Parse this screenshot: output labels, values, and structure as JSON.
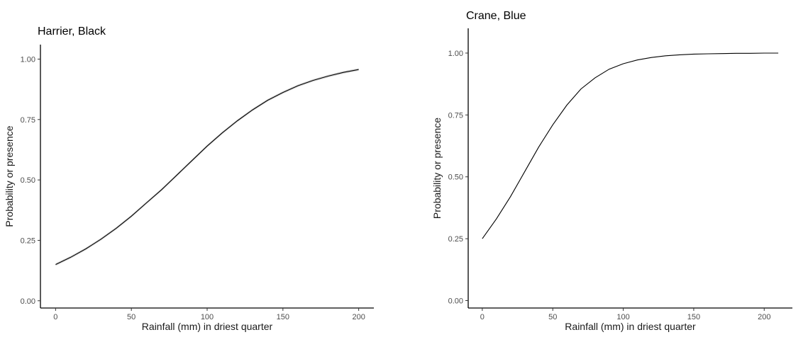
{
  "chart_data": [
    {
      "type": "line",
      "title": "Harrier, Black",
      "xlabel": "Rainfall (mm) in driest quarter",
      "ylabel": "Probability or presence",
      "xlim": [
        -10,
        210
      ],
      "ylim": [
        -0.03,
        1.06
      ],
      "xticks": [
        0,
        50,
        100,
        150,
        200
      ],
      "xtick_labels": [
        "0",
        "50",
        "100",
        "150",
        "200"
      ],
      "yticks": [
        0,
        0.25,
        0.5,
        0.75,
        1
      ],
      "ytick_labels": [
        "0.00",
        "0.25",
        "0.50",
        "0.75",
        "1.00"
      ],
      "grid": false,
      "has_ribbon": true,
      "series": [
        {
          "x": [
            0,
            10,
            20,
            30,
            40,
            50,
            60,
            70,
            80,
            90,
            100,
            110,
            120,
            130,
            140,
            150,
            160,
            170,
            180,
            190,
            200
          ],
          "y": [
            0.15,
            0.18,
            0.215,
            0.255,
            0.3,
            0.35,
            0.405,
            0.46,
            0.52,
            0.58,
            0.64,
            0.695,
            0.745,
            0.79,
            0.83,
            0.862,
            0.89,
            0.912,
            0.93,
            0.945,
            0.957
          ]
        }
      ]
    },
    {
      "type": "line",
      "title": "Crane, Blue",
      "xlabel": "Rainfall (mm) in driest quarter",
      "ylabel": "Probability or presence",
      "xlim": [
        -10,
        220
      ],
      "ylim": [
        -0.03,
        1.1
      ],
      "xticks": [
        0,
        50,
        100,
        150,
        200
      ],
      "xtick_labels": [
        "0",
        "50",
        "100",
        "150",
        "200"
      ],
      "yticks": [
        0,
        0.25,
        0.5,
        0.75,
        1
      ],
      "ytick_labels": [
        "0.00",
        "0.25",
        "0.50",
        "0.75",
        "1.00"
      ],
      "grid": false,
      "has_ribbon": false,
      "series": [
        {
          "x": [
            0,
            10,
            20,
            30,
            40,
            50,
            60,
            70,
            80,
            90,
            100,
            110,
            120,
            130,
            140,
            150,
            160,
            170,
            180,
            190,
            200,
            210
          ],
          "y": [
            0.25,
            0.33,
            0.42,
            0.52,
            0.62,
            0.71,
            0.79,
            0.855,
            0.9,
            0.935,
            0.957,
            0.972,
            0.982,
            0.989,
            0.993,
            0.996,
            0.997,
            0.998,
            0.999,
            0.999,
            1.0,
            1.0
          ]
        }
      ]
    }
  ]
}
